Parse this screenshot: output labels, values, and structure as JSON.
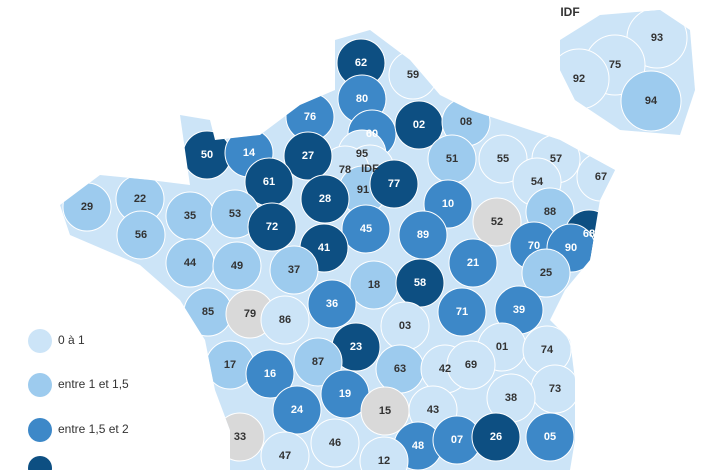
{
  "classes": [
    "#cce4f7",
    "#9dcbee",
    "#3d88c8",
    "#0d4f82",
    "#d9d9d9"
  ],
  "inset_title": "IDF",
  "legend": [
    {
      "label": "0 à 1",
      "class": 0
    },
    {
      "label": "entre 1 et 1,5",
      "class": 1
    },
    {
      "label": "entre 1,5 et 2",
      "class": 2
    },
    {
      "class": 3
    }
  ],
  "departments": [
    {
      "label": "62",
      "class": 3
    },
    {
      "label": "59",
      "class": 0
    },
    {
      "label": "80",
      "class": 2
    },
    {
      "label": "76",
      "class": 2
    },
    {
      "label": "60",
      "class": 2
    },
    {
      "label": "02",
      "class": 3
    },
    {
      "label": "08",
      "class": 1
    },
    {
      "label": "95",
      "class": 0
    },
    {
      "label": "IDF",
      "class": 0
    },
    {
      "label": "78",
      "class": 0
    },
    {
      "label": "91",
      "class": 1
    },
    {
      "label": "77",
      "class": 3
    },
    {
      "label": "51",
      "class": 1
    },
    {
      "label": "55",
      "class": 0
    },
    {
      "label": "57",
      "class": 0
    },
    {
      "label": "67",
      "class": 0
    },
    {
      "label": "54",
      "class": 0
    },
    {
      "label": "50",
      "class": 3
    },
    {
      "label": "14",
      "class": 2
    },
    {
      "label": "27",
      "class": 3
    },
    {
      "label": "61",
      "class": 3
    },
    {
      "label": "28",
      "class": 3
    },
    {
      "label": "22",
      "class": 1
    },
    {
      "label": "29",
      "class": 1
    },
    {
      "label": "35",
      "class": 1
    },
    {
      "label": "53",
      "class": 1
    },
    {
      "label": "72",
      "class": 3
    },
    {
      "label": "45",
      "class": 2
    },
    {
      "label": "10",
      "class": 2
    },
    {
      "label": "52",
      "class": 4
    },
    {
      "label": "88",
      "class": 1
    },
    {
      "label": "68",
      "class": 3
    },
    {
      "label": "56",
      "class": 1
    },
    {
      "label": "41",
      "class": 3
    },
    {
      "label": "89",
      "class": 2
    },
    {
      "label": "70",
      "class": 2
    },
    {
      "label": "90",
      "class": 2
    },
    {
      "label": "44",
      "class": 1
    },
    {
      "label": "49",
      "class": 1
    },
    {
      "label": "37",
      "class": 1
    },
    {
      "label": "18",
      "class": 1
    },
    {
      "label": "58",
      "class": 3
    },
    {
      "label": "21",
      "class": 2
    },
    {
      "label": "25",
      "class": 1
    },
    {
      "label": "85",
      "class": 1
    },
    {
      "label": "79",
      "class": 4
    },
    {
      "label": "86",
      "class": 0
    },
    {
      "label": "36",
      "class": 2
    },
    {
      "label": "71",
      "class": 2
    },
    {
      "label": "39",
      "class": 2
    },
    {
      "label": "03",
      "class": 0
    },
    {
      "label": "23",
      "class": 3
    },
    {
      "label": "01",
      "class": 0
    },
    {
      "label": "74",
      "class": 0
    },
    {
      "label": "17",
      "class": 1
    },
    {
      "label": "87",
      "class": 1
    },
    {
      "label": "16",
      "class": 2
    },
    {
      "label": "63",
      "class": 1
    },
    {
      "label": "42",
      "class": 0
    },
    {
      "label": "69",
      "class": 0
    },
    {
      "label": "73",
      "class": 0
    },
    {
      "label": "38",
      "class": 0
    },
    {
      "label": "19",
      "class": 2
    },
    {
      "label": "24",
      "class": 2
    },
    {
      "label": "15",
      "class": 4
    },
    {
      "label": "43",
      "class": 0
    },
    {
      "label": "33",
      "class": 4
    },
    {
      "label": "46",
      "class": 0
    },
    {
      "label": "48",
      "class": 2
    },
    {
      "label": "07",
      "class": 2
    },
    {
      "label": "26",
      "class": 3
    },
    {
      "label": "05",
      "class": 2
    },
    {
      "label": "47",
      "class": 0
    },
    {
      "label": "12",
      "class": 0
    }
  ],
  "inset": [
    {
      "label": "93",
      "class": 0
    },
    {
      "label": "75",
      "class": 0
    },
    {
      "label": "92",
      "class": 0
    },
    {
      "label": "94",
      "class": 1
    }
  ]
}
